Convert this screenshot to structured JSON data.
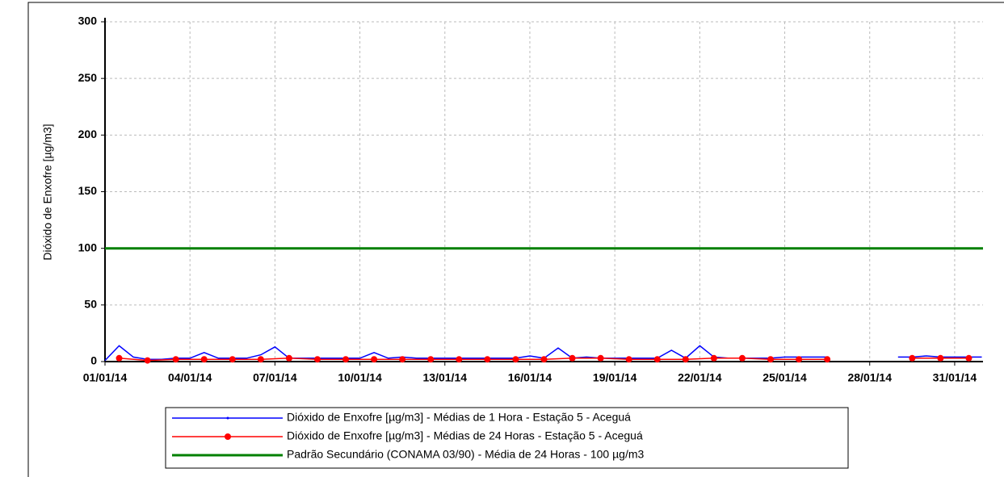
{
  "chart_data": {
    "type": "line",
    "ylabel": "Dióxido de Enxofre [µg/m3]",
    "xlim": [
      "2014-01-01",
      "2014-02-01"
    ],
    "xticks": [
      {
        "value": "2014-01-01",
        "label": "01/01/14"
      },
      {
        "value": "2014-01-04",
        "label": "04/01/14"
      },
      {
        "value": "2014-01-07",
        "label": "07/01/14"
      },
      {
        "value": "2014-01-10",
        "label": "10/01/14"
      },
      {
        "value": "2014-01-13",
        "label": "13/01/14"
      },
      {
        "value": "2014-01-16",
        "label": "16/01/14"
      },
      {
        "value": "2014-01-19",
        "label": "19/01/14"
      },
      {
        "value": "2014-01-22",
        "label": "22/01/14"
      },
      {
        "value": "2014-01-25",
        "label": "25/01/14"
      },
      {
        "value": "2014-01-28",
        "label": "28/01/14"
      },
      {
        "value": "2014-01-31",
        "label": "31/01/14"
      }
    ],
    "ylim": [
      0,
      300
    ],
    "yticks": [
      0,
      50,
      100,
      150,
      200,
      250,
      300
    ],
    "grid": true,
    "legend": "bottom",
    "series": [
      {
        "name": "Dióxido de Enxofre [µg/m3] - Médias de 1 Hora - Estação 5 - Aceguá",
        "color": "#0000ff",
        "marker": false,
        "x": [
          "2014-01-01T00:00",
          "2014-01-01T12:00",
          "2014-01-02T00:00",
          "2014-01-02T12:00",
          "2014-01-03T00:00",
          "2014-01-03T12:00",
          "2014-01-04T00:00",
          "2014-01-04T12:00",
          "2014-01-05T00:00",
          "2014-01-05T12:00",
          "2014-01-06T00:00",
          "2014-01-06T12:00",
          "2014-01-07T00:00",
          "2014-01-07T12:00",
          "2014-01-08T00:00",
          "2014-01-08T12:00",
          "2014-01-09T00:00",
          "2014-01-09T12:00",
          "2014-01-10T00:00",
          "2014-01-10T12:00",
          "2014-01-11T00:00",
          "2014-01-11T12:00",
          "2014-01-12T00:00",
          "2014-01-12T12:00",
          "2014-01-13T00:00",
          "2014-01-13T12:00",
          "2014-01-14T00:00",
          "2014-01-14T12:00",
          "2014-01-15T00:00",
          "2014-01-15T12:00",
          "2014-01-16T00:00",
          "2014-01-16T12:00",
          "2014-01-17T00:00",
          "2014-01-17T12:00",
          "2014-01-18T00:00",
          "2014-01-18T12:00",
          "2014-01-19T00:00",
          "2014-01-19T12:00",
          "2014-01-20T00:00",
          "2014-01-20T12:00",
          "2014-01-21T00:00",
          "2014-01-21T12:00",
          "2014-01-22T00:00",
          "2014-01-22T12:00",
          "2014-01-23T00:00",
          "2014-01-23T12:00",
          "2014-01-24T00:00",
          "2014-01-24T12:00",
          "2014-01-25T00:00",
          "2014-01-25T12:00",
          "2014-01-26T00:00",
          "2014-01-26T12:00",
          "2014-01-27T00:00",
          "2014-01-29T00:00",
          "2014-01-29T12:00",
          "2014-01-30T00:00",
          "2014-01-30T12:00",
          "2014-01-31T00:00",
          "2014-01-31T12:00",
          "2014-01-31T23:00"
        ],
        "values": [
          1,
          14,
          4,
          2,
          2,
          3,
          3,
          8,
          3,
          3,
          3,
          6,
          13,
          3,
          3,
          3,
          3,
          3,
          3,
          8,
          3,
          4,
          3,
          3,
          3,
          3,
          3,
          3,
          3,
          3,
          5,
          3,
          12,
          3,
          4,
          3,
          3,
          3,
          3,
          3,
          10,
          3,
          14,
          4,
          3,
          3,
          3,
          3,
          4,
          4,
          4,
          4,
          null,
          4,
          4,
          5,
          4,
          4,
          4,
          4
        ]
      },
      {
        "name": "Dióxido de Enxofre [µg/m3] - Médias de 24 Horas - Estação 5 - Aceguá",
        "color": "#ff0000",
        "marker": true,
        "x": [
          "2014-01-01T12:00",
          "2014-01-02T12:00",
          "2014-01-03T12:00",
          "2014-01-04T12:00",
          "2014-01-05T12:00",
          "2014-01-06T12:00",
          "2014-01-07T12:00",
          "2014-01-08T12:00",
          "2014-01-09T12:00",
          "2014-01-10T12:00",
          "2014-01-11T12:00",
          "2014-01-12T12:00",
          "2014-01-13T12:00",
          "2014-01-14T12:00",
          "2014-01-15T12:00",
          "2014-01-16T12:00",
          "2014-01-17T12:00",
          "2014-01-18T12:00",
          "2014-01-19T12:00",
          "2014-01-20T12:00",
          "2014-01-21T12:00",
          "2014-01-22T12:00",
          "2014-01-23T12:00",
          "2014-01-24T12:00",
          "2014-01-25T12:00",
          "2014-01-26T12:00",
          "2014-01-27T12:00",
          "2014-01-28T12:00",
          "2014-01-29T12:00",
          "2014-01-30T12:00",
          "2014-01-31T12:00"
        ],
        "values": [
          3,
          1,
          2,
          2,
          2,
          2,
          3,
          2,
          2,
          2,
          2,
          2,
          2,
          2,
          2,
          2,
          3,
          3,
          2,
          2,
          2,
          3,
          3,
          2,
          2,
          2,
          null,
          null,
          3,
          3,
          3
        ]
      },
      {
        "name": "Padrão Secundário (CONAMA 03/90) - Média de 24 Horas - 100 µg/m3",
        "color": "#008000",
        "marker": false,
        "x": [
          "2014-01-01",
          "2014-02-01"
        ],
        "values": [
          100,
          100
        ]
      }
    ]
  }
}
